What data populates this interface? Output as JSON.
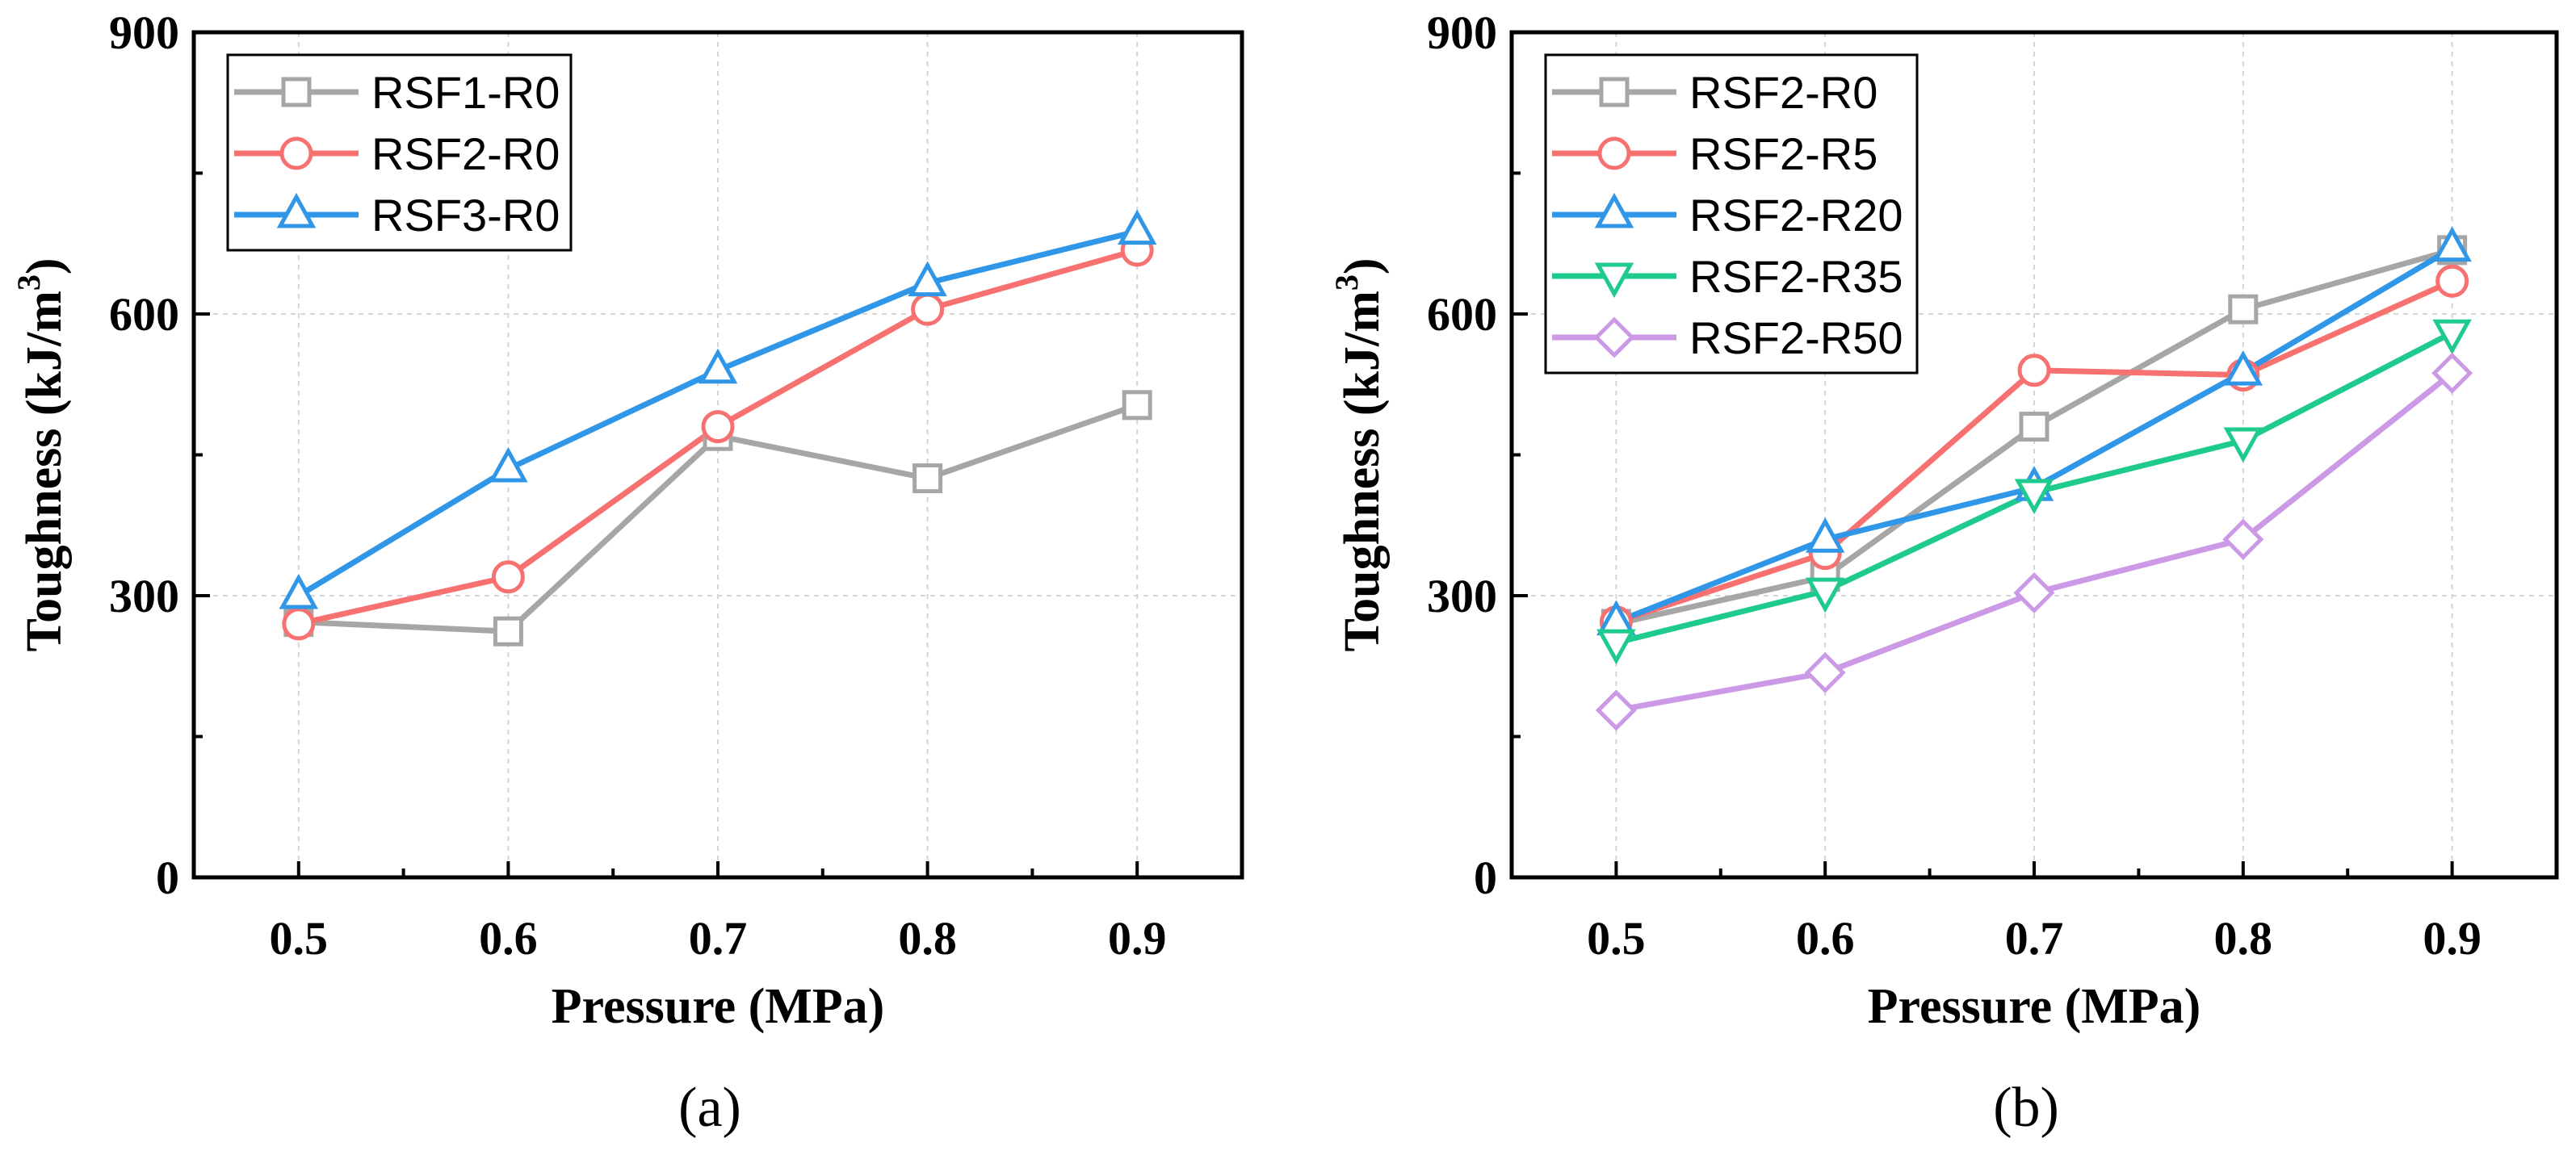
{
  "chart_data": [
    {
      "type": "line",
      "panel_label": "(a)",
      "xlabel": "Pressure (MPa)",
      "ylabel_main": "Toughness (kJ/m",
      "ylabel_sup": "3",
      "ylabel_close": ")",
      "xlim": [
        0.45,
        0.95
      ],
      "ylim": [
        0,
        900
      ],
      "x": [
        0.5,
        0.6,
        0.7,
        0.8,
        0.9
      ],
      "xticks": [
        "0.5",
        "0.6",
        "0.7",
        "0.8",
        "0.9"
      ],
      "yticks": [
        0,
        300,
        600,
        900
      ],
      "grid": true,
      "legend_position": "top-left",
      "series": [
        {
          "name": "RSF1-R0",
          "color": "#a6a6a6",
          "marker": "square",
          "values": [
            272,
            262,
            470,
            425,
            503
          ]
        },
        {
          "name": "RSF2-R0",
          "color": "#f77171",
          "marker": "circle",
          "values": [
            270,
            320,
            480,
            605,
            668
          ]
        },
        {
          "name": "RSF3-R0",
          "color": "#2f96e8",
          "marker": "triangle-up",
          "values": [
            300,
            435,
            540,
            633,
            688
          ]
        }
      ]
    },
    {
      "type": "line",
      "panel_label": "(b)",
      "xlabel": "Pressure (MPa)",
      "ylabel_main": "Toughness (kJ/m",
      "ylabel_sup": "3",
      "ylabel_close": ")",
      "xlim": [
        0.45,
        0.95
      ],
      "ylim": [
        0,
        900
      ],
      "x": [
        0.5,
        0.6,
        0.7,
        0.8,
        0.9
      ],
      "xticks": [
        "0.5",
        "0.6",
        "0.7",
        "0.8",
        "0.9"
      ],
      "yticks": [
        0,
        300,
        600,
        900
      ],
      "grid": true,
      "legend_position": "top-left",
      "series": [
        {
          "name": "RSF2-R0",
          "color": "#a6a6a6",
          "marker": "square",
          "values": [
            270,
            320,
            480,
            605,
            668
          ]
        },
        {
          "name": "RSF2-R5",
          "color": "#f77171",
          "marker": "circle",
          "values": [
            272,
            345,
            540,
            535,
            635
          ]
        },
        {
          "name": "RSF2-R20",
          "color": "#2f96e8",
          "marker": "triangle-up",
          "values": [
            272,
            360,
            415,
            538,
            670
          ]
        },
        {
          "name": "RSF2-R35",
          "color": "#1ecb8c",
          "marker": "triangle-down",
          "values": [
            250,
            305,
            410,
            465,
            580
          ]
        },
        {
          "name": "RSF2-R50",
          "color": "#cc99e6",
          "marker": "diamond",
          "values": [
            178,
            218,
            303,
            360,
            537
          ]
        }
      ]
    }
  ]
}
